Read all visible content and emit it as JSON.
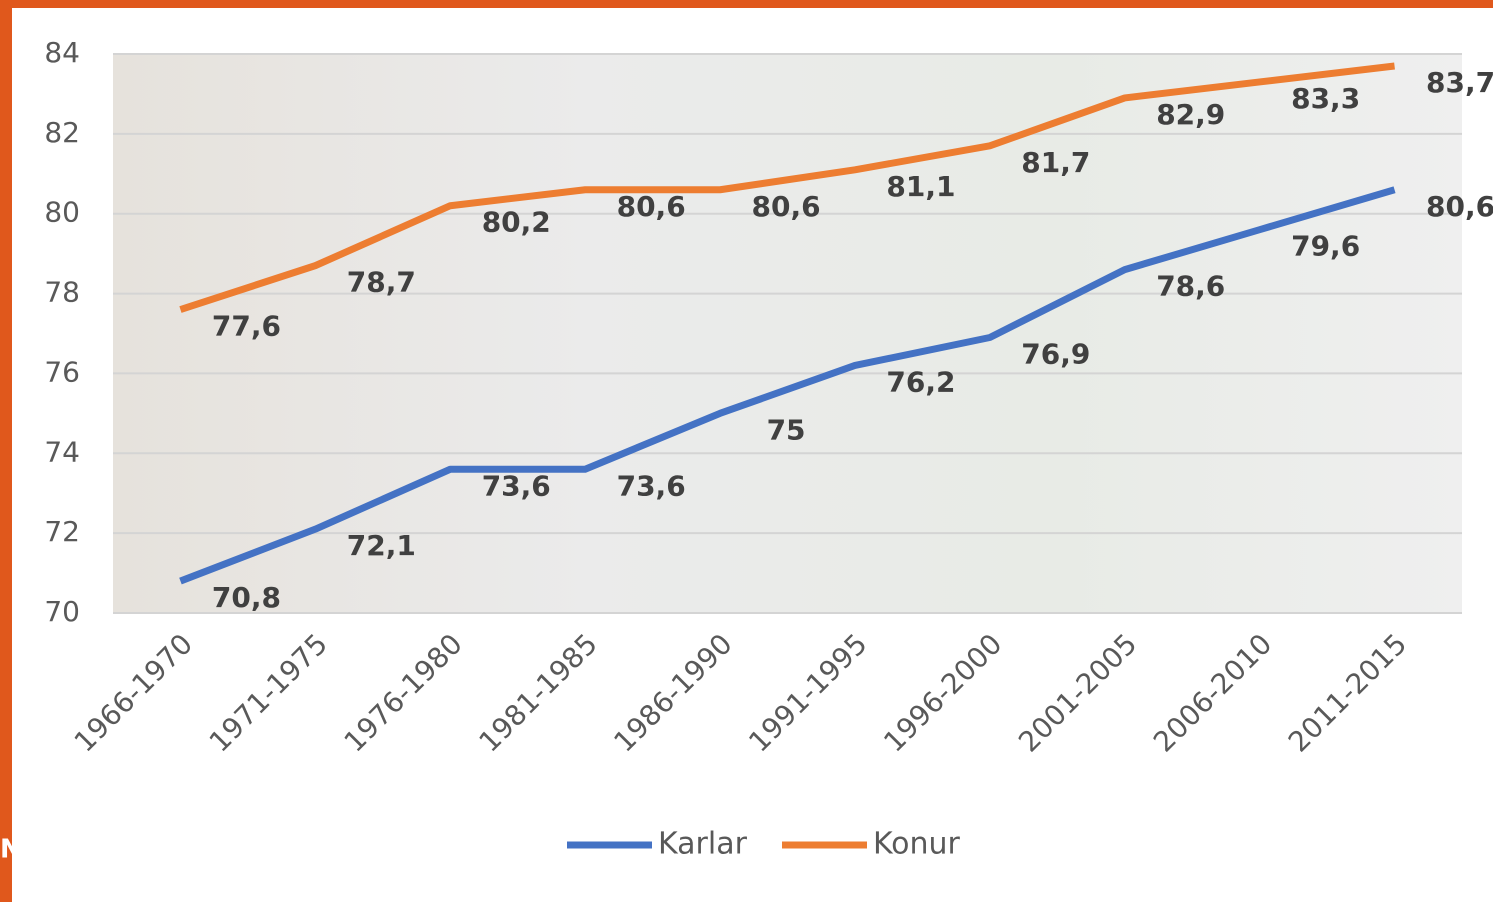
{
  "chart_data": {
    "type": "line",
    "categories": [
      "1966-1970",
      "1971-1975",
      "1976-1980",
      "1981-1985",
      "1986-1990",
      "1991-1995",
      "1996-2000",
      "2001-2005",
      "2006-2010",
      "2011-2015"
    ],
    "series": [
      {
        "name": "Karlar",
        "color": "#4472c4",
        "values": [
          70.8,
          72.1,
          73.6,
          73.6,
          75,
          76.2,
          76.9,
          78.6,
          79.6,
          80.6
        ],
        "value_labels": [
          "70,8",
          "72,1",
          "73,6",
          "73,6",
          "75",
          "76,2",
          "76,9",
          "78,6",
          "79,6",
          "80,6"
        ]
      },
      {
        "name": "Konur",
        "color": "#ed7d31",
        "values": [
          77.6,
          78.7,
          80.2,
          80.6,
          80.6,
          81.1,
          81.7,
          82.9,
          83.3,
          83.7
        ],
        "value_labels": [
          "77,6",
          "78,7",
          "80,2",
          "80,6",
          "80,6",
          "81,1",
          "81,7",
          "82,9",
          "83,3",
          "83,7"
        ]
      }
    ],
    "ylim": [
      70,
      84
    ],
    "yticks": [
      70,
      72,
      74,
      76,
      78,
      80,
      82,
      84
    ],
    "grid": true,
    "legend": "bottom"
  },
  "edge_text": "N"
}
